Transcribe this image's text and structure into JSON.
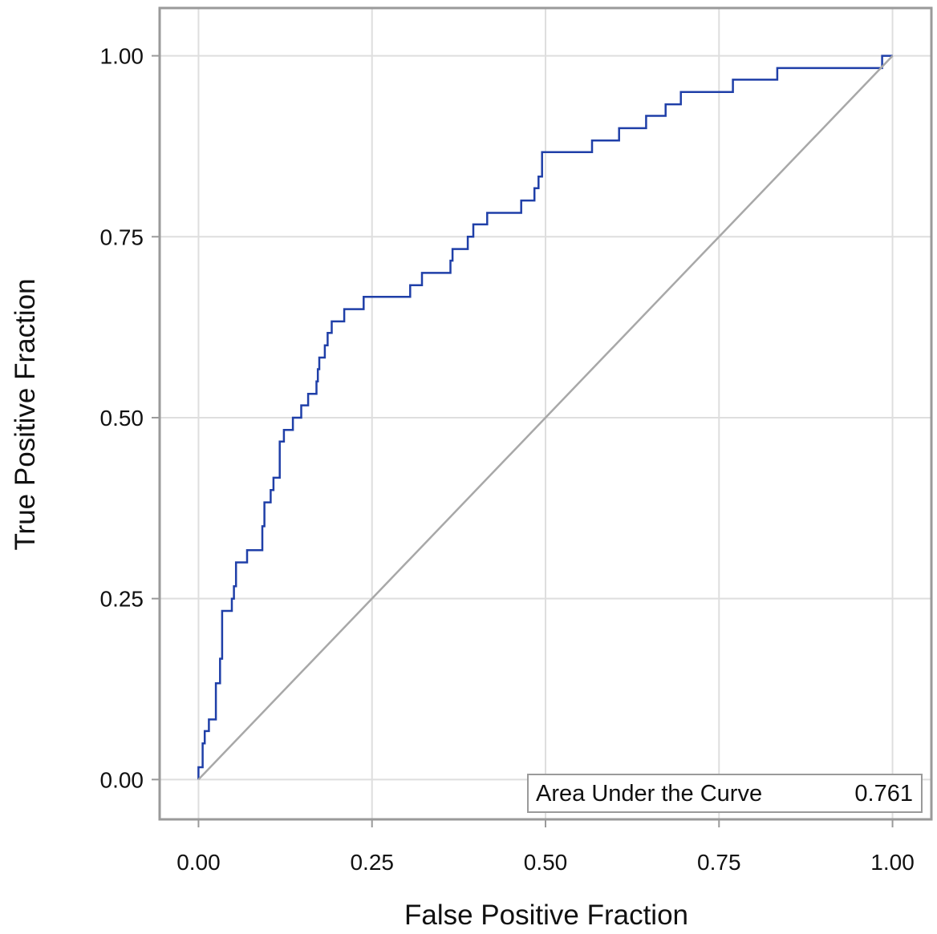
{
  "chart_data": {
    "type": "line",
    "title": "",
    "xlabel": "False Positive Fraction",
    "ylabel": "True Positive Fraction",
    "xlim": [
      -0.056,
      1.056
    ],
    "ylim": [
      -0.055,
      1.066
    ],
    "x_ticks": [
      "0.00",
      "0.25",
      "0.50",
      "0.75",
      "1.00"
    ],
    "y_ticks": [
      "0.00",
      "0.25",
      "0.50",
      "0.75",
      "1.00"
    ],
    "grid": true,
    "legend": "none",
    "annotation": {
      "label": "Area Under the Curve",
      "value": "0.761",
      "placement": "bottom-right"
    },
    "colors": {
      "curve": "#1f3fa8",
      "reference": "#a8a8a8",
      "grid": "#dedede",
      "frame": "#9a9a9a"
    },
    "series": [
      {
        "kind": "roc-step",
        "points": [
          [
            0.0,
            0.0
          ],
          [
            0.0,
            0.017
          ],
          [
            0.006,
            0.017
          ],
          [
            0.006,
            0.05
          ],
          [
            0.009,
            0.05
          ],
          [
            0.009,
            0.067
          ],
          [
            0.015,
            0.067
          ],
          [
            0.015,
            0.083
          ],
          [
            0.025,
            0.083
          ],
          [
            0.025,
            0.133
          ],
          [
            0.031,
            0.133
          ],
          [
            0.031,
            0.167
          ],
          [
            0.034,
            0.167
          ],
          [
            0.034,
            0.233
          ],
          [
            0.048,
            0.233
          ],
          [
            0.048,
            0.25
          ],
          [
            0.051,
            0.25
          ],
          [
            0.051,
            0.267
          ],
          [
            0.054,
            0.267
          ],
          [
            0.054,
            0.3
          ],
          [
            0.07,
            0.3
          ],
          [
            0.07,
            0.317
          ],
          [
            0.092,
            0.317
          ],
          [
            0.092,
            0.35
          ],
          [
            0.095,
            0.35
          ],
          [
            0.095,
            0.383
          ],
          [
            0.104,
            0.383
          ],
          [
            0.104,
            0.4
          ],
          [
            0.108,
            0.4
          ],
          [
            0.108,
            0.417
          ],
          [
            0.117,
            0.417
          ],
          [
            0.117,
            0.467
          ],
          [
            0.123,
            0.467
          ],
          [
            0.123,
            0.483
          ],
          [
            0.136,
            0.483
          ],
          [
            0.136,
            0.5
          ],
          [
            0.148,
            0.5
          ],
          [
            0.148,
            0.517
          ],
          [
            0.158,
            0.517
          ],
          [
            0.158,
            0.533
          ],
          [
            0.17,
            0.533
          ],
          [
            0.17,
            0.55
          ],
          [
            0.172,
            0.55
          ],
          [
            0.172,
            0.567
          ],
          [
            0.174,
            0.567
          ],
          [
            0.174,
            0.583
          ],
          [
            0.182,
            0.583
          ],
          [
            0.182,
            0.6
          ],
          [
            0.186,
            0.6
          ],
          [
            0.186,
            0.617
          ],
          [
            0.192,
            0.617
          ],
          [
            0.192,
            0.633
          ],
          [
            0.21,
            0.633
          ],
          [
            0.21,
            0.65
          ],
          [
            0.238,
            0.65
          ],
          [
            0.238,
            0.667
          ],
          [
            0.305,
            0.667
          ],
          [
            0.305,
            0.683
          ],
          [
            0.322,
            0.683
          ],
          [
            0.322,
            0.7
          ],
          [
            0.363,
            0.7
          ],
          [
            0.363,
            0.717
          ],
          [
            0.366,
            0.717
          ],
          [
            0.366,
            0.733
          ],
          [
            0.388,
            0.733
          ],
          [
            0.388,
            0.75
          ],
          [
            0.396,
            0.75
          ],
          [
            0.396,
            0.767
          ],
          [
            0.416,
            0.767
          ],
          [
            0.416,
            0.783
          ],
          [
            0.465,
            0.783
          ],
          [
            0.465,
            0.8
          ],
          [
            0.484,
            0.8
          ],
          [
            0.484,
            0.817
          ],
          [
            0.49,
            0.817
          ],
          [
            0.49,
            0.833
          ],
          [
            0.495,
            0.833
          ],
          [
            0.495,
            0.867
          ],
          [
            0.567,
            0.867
          ],
          [
            0.567,
            0.883
          ],
          [
            0.606,
            0.883
          ],
          [
            0.606,
            0.9
          ],
          [
            0.645,
            0.9
          ],
          [
            0.645,
            0.917
          ],
          [
            0.673,
            0.917
          ],
          [
            0.673,
            0.933
          ],
          [
            0.695,
            0.933
          ],
          [
            0.695,
            0.95
          ],
          [
            0.77,
            0.95
          ],
          [
            0.77,
            0.967
          ],
          [
            0.834,
            0.967
          ],
          [
            0.834,
            0.983
          ],
          [
            0.985,
            0.983
          ],
          [
            0.985,
            1.0
          ],
          [
            1.0,
            1.0
          ]
        ]
      },
      {
        "kind": "reference-diagonal",
        "points": [
          [
            0.0,
            0.0
          ],
          [
            1.0,
            1.0
          ]
        ]
      }
    ]
  }
}
